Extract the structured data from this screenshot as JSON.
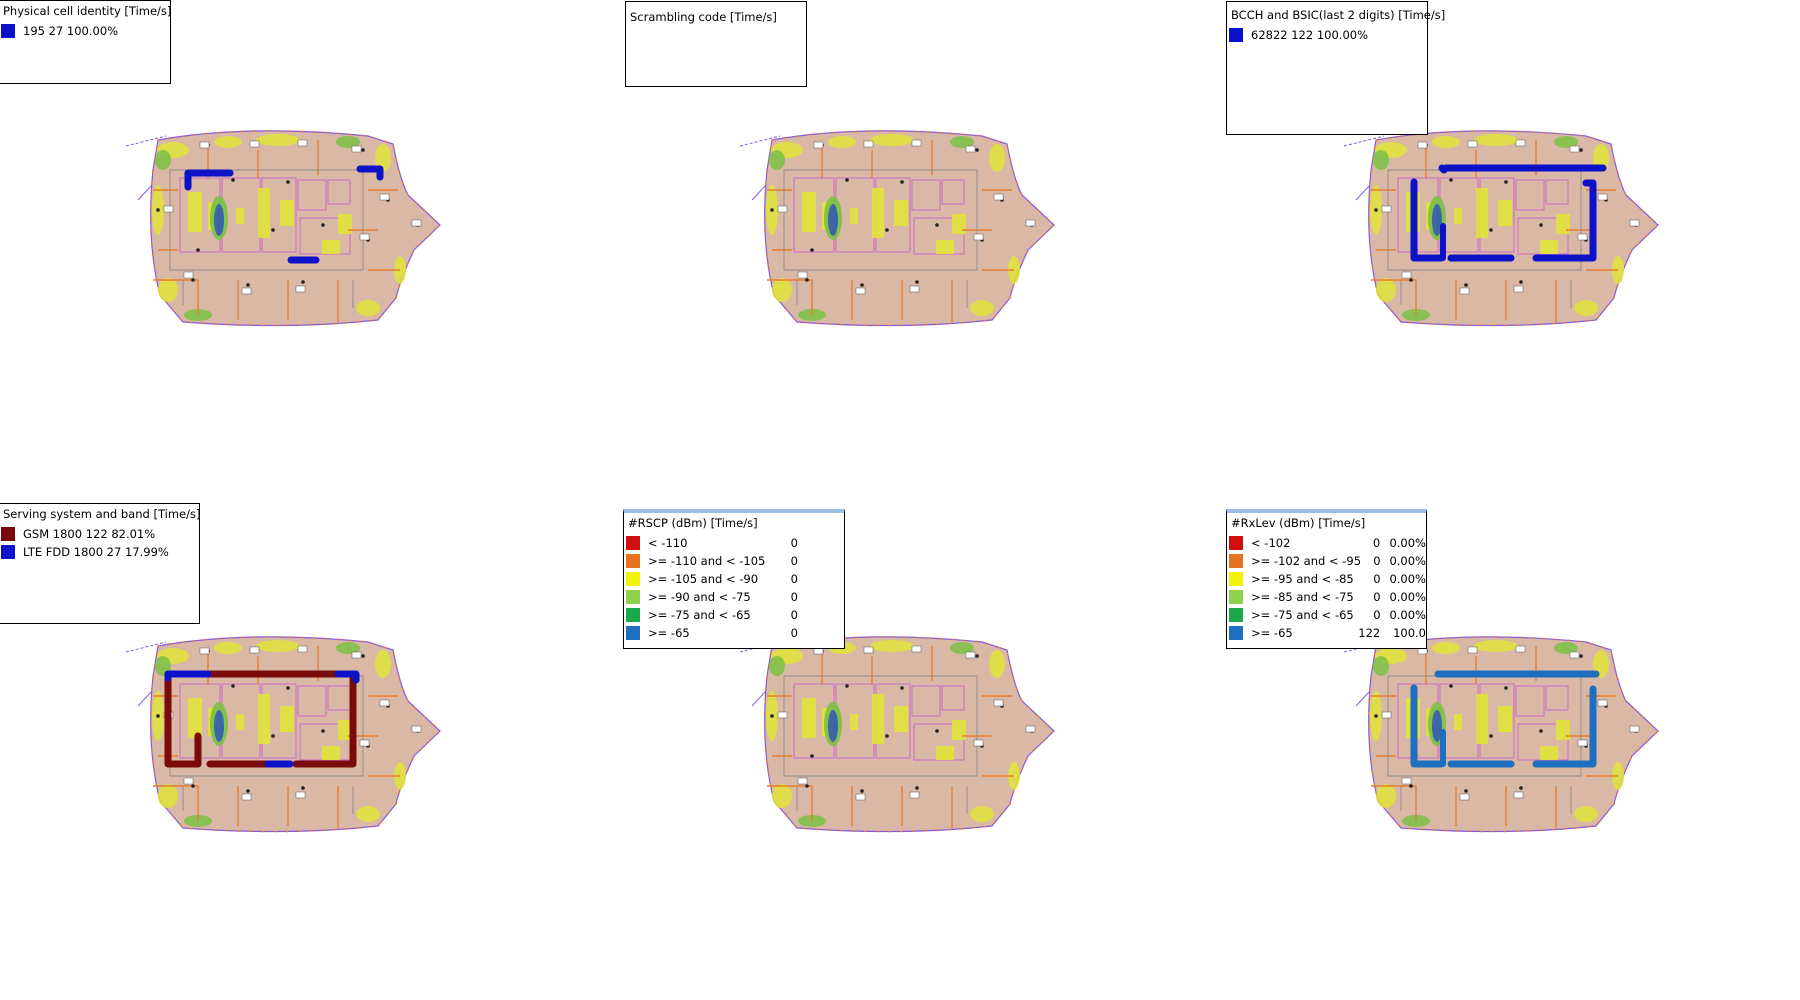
{
  "colors": {
    "background": "#ffffff",
    "floor": "#d9b8a6",
    "wall_orange": "#e87c2a",
    "wall_gray": "#8a8a8a",
    "wall_pink": "#d06acb",
    "coverage_yellow": "#e0e33a",
    "coverage_green": "#7ac142",
    "coverage_blue": "#2e56b8",
    "route_blue": "#0b12c8",
    "route_darkred": "#7b0a0a",
    "route_steelblue": "#1f6fc1",
    "outline_purple": "#8a5ad8"
  },
  "legends": {
    "pci": {
      "title": "Physical cell identity [Time/s]",
      "rows": [
        {
          "color": "#0b12c8",
          "label": "195 27  100.00%"
        }
      ]
    },
    "sc": {
      "title": "Scrambling code [Time/s]",
      "rows": []
    },
    "bcch": {
      "title": "BCCH and BSIC(last 2 digits) [Time/s]",
      "rows": [
        {
          "color": "#0b12c8",
          "label": "62822 122  100.00%"
        }
      ]
    },
    "band": {
      "title": "Serving system and band [Time/s]",
      "rows": [
        {
          "color": "#7b0a0a",
          "label": "GSM 1800 122  82.01%"
        },
        {
          "color": "#0b12c8",
          "label": "LTE FDD 1800 27  17.99%"
        }
      ]
    },
    "rscp": {
      "title": "#RSCP (dBm) [Time/s]",
      "rows": [
        {
          "color": "#d01010",
          "label": "< -110",
          "count": "0"
        },
        {
          "color": "#e8731f",
          "label": ">= -110 and < -105",
          "count": "0"
        },
        {
          "color": "#f2f20a",
          "label": ">= -105 and < -90",
          "count": "0"
        },
        {
          "color": "#8fd14f",
          "label": ">= -90 and < -75",
          "count": "0"
        },
        {
          "color": "#1aa84a",
          "label": ">= -75 and < -65",
          "count": "0"
        },
        {
          "color": "#1f6fc1",
          "label": ">= -65",
          "count": "0"
        }
      ]
    },
    "rxlev": {
      "title": "#RxLev (dBm) [Time/s]",
      "rows": [
        {
          "color": "#d01010",
          "label": "< -102",
          "count": "0",
          "pct": "0.00%"
        },
        {
          "color": "#e8731f",
          "label": ">= -102 and < -95",
          "count": "0",
          "pct": "0.00%"
        },
        {
          "color": "#f2f20a",
          "label": ">= -95 and < -85",
          "count": "0",
          "pct": "0.00%"
        },
        {
          "color": "#8fd14f",
          "label": ">= -85 and < -75",
          "count": "0",
          "pct": "0.00%"
        },
        {
          "color": "#1aa84a",
          "label": ">= -75 and < -65",
          "count": "0",
          "pct": "0.00%"
        },
        {
          "color": "#1f6fc1",
          "label": ">= -65",
          "count": "122",
          "pct": "100.0"
        }
      ]
    }
  }
}
